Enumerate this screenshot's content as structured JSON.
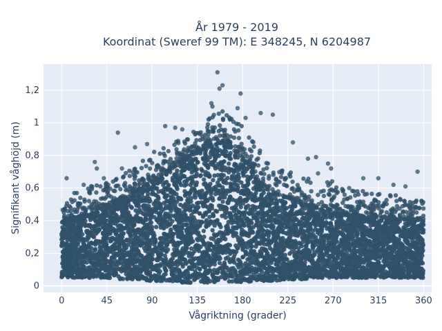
{
  "chart_data": {
    "type": "scatter",
    "title_lines": [
      "År 1979 - 2019",
      "Koordinat (Sweref 99 TM): E 348245, N 6204987"
    ],
    "xlabel": "Vågriktning (grader)",
    "ylabel": "Signifikant våghöjd (m)",
    "xlim": [
      -18,
      368
    ],
    "ylim": [
      -0.04,
      1.36
    ],
    "x_ticks": [
      0,
      45,
      90,
      135,
      180,
      225,
      270,
      315,
      360
    ],
    "x_tick_labels": [
      "0",
      "45",
      "90",
      "135",
      "180",
      "225",
      "270",
      "315",
      "360"
    ],
    "y_ticks": [
      0,
      0.2,
      0.4,
      0.6,
      0.8,
      1.0,
      1.2
    ],
    "y_tick_labels": [
      "0",
      "0,2",
      "0,4",
      "0,6",
      "0,8",
      "1",
      "1,2"
    ],
    "grid": true,
    "background_color": "#e5ecf6",
    "marker_color": "#2f5068",
    "envelope": {
      "x": [
        0,
        15,
        30,
        45,
        60,
        75,
        90,
        105,
        120,
        135,
        150,
        160,
        170,
        180,
        195,
        210,
        225,
        240,
        255,
        270,
        285,
        300,
        315,
        330,
        345,
        360
      ],
      "upper_max": [
        0.55,
        0.58,
        0.62,
        0.64,
        0.68,
        0.74,
        0.82,
        0.86,
        0.9,
        0.96,
        1.05,
        1.1,
        1.02,
        0.98,
        0.85,
        0.75,
        0.72,
        0.7,
        0.66,
        0.64,
        0.62,
        0.59,
        0.57,
        0.56,
        0.54,
        0.52
      ],
      "dense_top": [
        0.4,
        0.42,
        0.45,
        0.48,
        0.52,
        0.58,
        0.64,
        0.7,
        0.76,
        0.82,
        0.86,
        0.88,
        0.84,
        0.78,
        0.64,
        0.57,
        0.54,
        0.5,
        0.47,
        0.45,
        0.43,
        0.42,
        0.42,
        0.41,
        0.41,
        0.4
      ],
      "lower": [
        0.05,
        0.05,
        0.05,
        0.05,
        0.04,
        0.04,
        0.03,
        0.03,
        0.02,
        0.02,
        0.02,
        0.02,
        0.02,
        0.02,
        0.03,
        0.03,
        0.04,
        0.04,
        0.05,
        0.05,
        0.05,
        0.05,
        0.05,
        0.05,
        0.05,
        0.05
      ]
    },
    "outliers": [
      {
        "x": 155,
        "y": 1.31
      },
      {
        "x": 157,
        "y": 1.21
      },
      {
        "x": 160,
        "y": 1.23
      },
      {
        "x": 149,
        "y": 1.12
      },
      {
        "x": 150,
        "y": 1.1
      },
      {
        "x": 178,
        "y": 1.18
      },
      {
        "x": 175,
        "y": 1.09
      },
      {
        "x": 198,
        "y": 1.06
      },
      {
        "x": 210,
        "y": 1.05
      },
      {
        "x": 183,
        "y": 1.03
      },
      {
        "x": 103,
        "y": 0.98
      },
      {
        "x": 113,
        "y": 0.97
      },
      {
        "x": 120,
        "y": 0.96
      },
      {
        "x": 56,
        "y": 0.94
      },
      {
        "x": 230,
        "y": 0.88
      },
      {
        "x": 85,
        "y": 0.87
      },
      {
        "x": 73,
        "y": 0.85
      },
      {
        "x": 33,
        "y": 0.76
      },
      {
        "x": 35,
        "y": 0.72
      },
      {
        "x": 5,
        "y": 0.66
      },
      {
        "x": 245,
        "y": 0.78
      },
      {
        "x": 253,
        "y": 0.79
      },
      {
        "x": 265,
        "y": 0.75
      },
      {
        "x": 268,
        "y": 0.72
      },
      {
        "x": 300,
        "y": 0.66
      },
      {
        "x": 315,
        "y": 0.66
      },
      {
        "x": 354,
        "y": 0.7
      },
      {
        "x": 330,
        "y": 0.62
      },
      {
        "x": 342,
        "y": 0.61
      },
      {
        "x": 22,
        "y": 0.62
      },
      {
        "x": 42,
        "y": 0.66
      },
      {
        "x": 60,
        "y": 0.72
      },
      {
        "x": 255,
        "y": 0.69
      },
      {
        "x": 286,
        "y": 0.6
      },
      {
        "x": 358,
        "y": 0.52
      }
    ]
  }
}
